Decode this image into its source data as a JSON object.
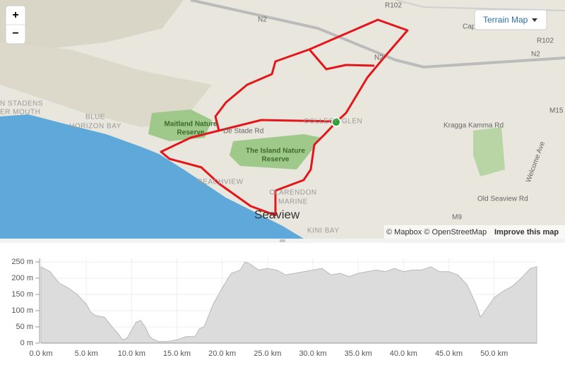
{
  "map": {
    "zoom_in": "+",
    "zoom_out": "−",
    "layer_button": "Terrain Map",
    "roads": {
      "r102_top": "R102",
      "r102_right": "R102",
      "n2_left": "N2",
      "n2_mid": "N2",
      "n2_right": "N2",
      "m15": "M15",
      "m9": "M9",
      "kragga": "Kragga Kamma Rd",
      "destade": "De Stade Rd",
      "oldseaview": "Old Seaview Rd",
      "welcome": "Welcome Ave",
      "capeheights": "Capeheig"
    },
    "places": {
      "maitland": [
        "Maitland Nature",
        "Reserve"
      ],
      "island": [
        "The Island Nature",
        "Reserve"
      ],
      "blue": [
        "BLUE",
        "HORIZON BAY"
      ],
      "stadens": [
        "N STADENS",
        "ER MOUTH"
      ],
      "beachview": "BEACHVIEW",
      "clarendon": [
        "CLARENDON",
        "MARINE"
      ],
      "seaview": "Seaview",
      "kini": "KINI BAY",
      "college": "COLLEGE GLEN"
    },
    "attribution": "© Mapbox © OpenStreetMap",
    "improve": "Improve this map"
  },
  "chart_data": {
    "type": "area",
    "color": "#dcdcdc",
    "grid": true,
    "x": [
      0,
      1,
      2,
      3,
      4,
      5,
      5.5,
      6,
      7,
      8,
      8.5,
      9,
      9.5,
      10,
      10.5,
      11,
      11.5,
      12,
      12.5,
      13,
      14,
      15,
      16,
      17,
      17.5,
      18,
      19,
      20,
      21,
      22,
      22.5,
      23,
      24,
      25,
      26,
      27,
      28,
      29,
      30,
      31,
      32,
      33,
      34,
      35,
      36,
      37,
      38,
      39,
      40,
      41,
      42,
      43,
      44,
      45,
      46,
      47,
      48,
      48.5,
      49,
      50,
      51,
      52,
      53,
      54,
      54.7
    ],
    "series": [
      {
        "values": [
          235,
          220,
          185,
          170,
          150,
          120,
          95,
          85,
          80,
          45,
          30,
          10,
          15,
          40,
          65,
          70,
          50,
          20,
          10,
          5,
          5,
          10,
          20,
          20,
          45,
          50,
          120,
          170,
          215,
          225,
          250,
          245,
          225,
          230,
          225,
          210,
          215,
          220,
          225,
          230,
          210,
          215,
          205,
          215,
          220,
          225,
          220,
          230,
          220,
          225,
          225,
          235,
          220,
          220,
          210,
          180,
          120,
          80,
          100,
          140,
          160,
          175,
          200,
          230,
          235
        ]
      }
    ],
    "xlim": [
      0,
      54.7
    ],
    "ylim": [
      0,
      250
    ],
    "xticks": [
      {
        "value": 0,
        "label": "0.0 km"
      },
      {
        "value": 5,
        "label": "5.0 km"
      },
      {
        "value": 10,
        "label": "10.0 km"
      },
      {
        "value": 15,
        "label": "15.0 km"
      },
      {
        "value": 20,
        "label": "20.0 km"
      },
      {
        "value": 25,
        "label": "25.0 km"
      },
      {
        "value": 30,
        "label": "30.0 km"
      },
      {
        "value": 35,
        "label": "35.0 km"
      },
      {
        "value": 40,
        "label": "40.0 km"
      },
      {
        "value": 45,
        "label": "45.0 km"
      },
      {
        "value": 50,
        "label": "50.0 km"
      }
    ],
    "yticks": [
      {
        "value": 0,
        "label": "0 m"
      },
      {
        "value": 50,
        "label": "50 m"
      },
      {
        "value": 100,
        "label": "100 m"
      },
      {
        "value": 150,
        "label": "150 m"
      },
      {
        "value": 200,
        "label": "200 m"
      },
      {
        "value": 250,
        "label": "250 m"
      }
    ]
  }
}
